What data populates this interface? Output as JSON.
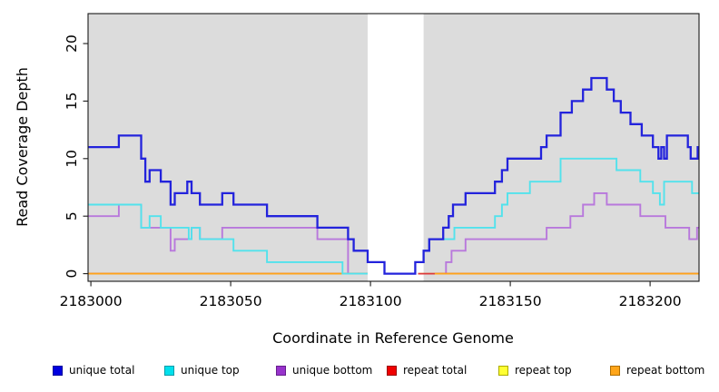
{
  "chart_data": {
    "type": "line",
    "subtype": "step",
    "title": "",
    "xlabel": "Coordinate in Reference Genome",
    "ylabel": "Read Coverage Depth",
    "xlim": [
      2182999,
      2183217.5
    ],
    "ylim": [
      -0.66,
      22.6
    ],
    "grid": false,
    "plot_bg_color": "#DCDCDC",
    "gap_band": {
      "x0": 2183099,
      "x1": 2183119,
      "color": "#FFFFFF"
    },
    "x_ticks": [
      {
        "value": 2183000,
        "label": "2183000"
      },
      {
        "value": 2183050,
        "label": "2183050"
      },
      {
        "value": 2183100,
        "label": "2183100"
      },
      {
        "value": 2183150,
        "label": "2183150"
      },
      {
        "value": 2183200,
        "label": "2183200"
      }
    ],
    "y_ticks": [
      {
        "value": 0,
        "label": "0"
      },
      {
        "value": 5,
        "label": "5"
      },
      {
        "value": 10,
        "label": "10"
      },
      {
        "value": 15,
        "label": "15"
      },
      {
        "value": 20,
        "label": "20"
      }
    ],
    "draw_order": [
      "unique bottom",
      "repeat top",
      "repeat total",
      "repeat bottom",
      "unique top",
      "unique total"
    ],
    "series": [
      {
        "name": "unique total",
        "color": "#2323DC",
        "line_width": 2.3,
        "segments": [
          [
            [
              2182999,
              11
            ],
            [
              2183010,
              12
            ],
            [
              2183018,
              10
            ],
            [
              2183019.5,
              8
            ],
            [
              2183021,
              9
            ],
            [
              2183025,
              8
            ],
            [
              2183028.5,
              6
            ],
            [
              2183030,
              7
            ],
            [
              2183034.5,
              8
            ],
            [
              2183036,
              7
            ],
            [
              2183039,
              6
            ],
            [
              2183047,
              7
            ],
            [
              2183051,
              6
            ],
            [
              2183063,
              5
            ],
            [
              2183081,
              4
            ],
            [
              2183092,
              3
            ],
            [
              2183094,
              2
            ],
            [
              2183099,
              1
            ],
            [
              2183105,
              0
            ],
            [
              2183116,
              1
            ],
            [
              2183119,
              2
            ],
            [
              2183121,
              3
            ],
            [
              2183126,
              4
            ],
            [
              2183128,
              5
            ],
            [
              2183129.5,
              6
            ],
            [
              2183134,
              7
            ],
            [
              2183144.5,
              8
            ],
            [
              2183147,
              9
            ],
            [
              2183149,
              10
            ],
            [
              2183161,
              11
            ],
            [
              2183163,
              12
            ],
            [
              2183168,
              14
            ],
            [
              2183172,
              15
            ],
            [
              2183176,
              16
            ],
            [
              2183179,
              17
            ],
            [
              2183184.5,
              16
            ],
            [
              2183187,
              15
            ],
            [
              2183189.5,
              14
            ],
            [
              2183193,
              13
            ],
            [
              2183197,
              12
            ],
            [
              2183201,
              11
            ],
            [
              2183203,
              10
            ],
            [
              2183204,
              11
            ],
            [
              2183205,
              10
            ],
            [
              2183206,
              12
            ],
            [
              2183213.5,
              11
            ],
            [
              2183214.5,
              10
            ],
            [
              2183217,
              11
            ],
            [
              2183217.5,
              11
            ]
          ]
        ]
      },
      {
        "name": "unique top",
        "color": "#52E2EC",
        "line_width": 1.9,
        "segments": [
          [
            [
              2182999,
              6
            ],
            [
              2183018,
              4
            ],
            [
              2183021,
              5
            ],
            [
              2183025,
              4
            ],
            [
              2183035,
              3
            ],
            [
              2183036,
              4
            ],
            [
              2183039,
              3
            ],
            [
              2183051,
              2
            ],
            [
              2183063,
              1
            ],
            [
              2183090,
              0
            ],
            [
              2183099,
              0
            ]
          ],
          [
            [
              2183116.5,
              1
            ],
            [
              2183119,
              2
            ],
            [
              2183121,
              3
            ],
            [
              2183130,
              4
            ],
            [
              2183144.5,
              5
            ],
            [
              2183147,
              6
            ],
            [
              2183149,
              7
            ],
            [
              2183157,
              8
            ],
            [
              2183168,
              10
            ],
            [
              2183188,
              9
            ],
            [
              2183196.5,
              8
            ],
            [
              2183201,
              7
            ],
            [
              2183203.5,
              6
            ],
            [
              2183205,
              8
            ],
            [
              2183215,
              7
            ],
            [
              2183217.5,
              7
            ]
          ]
        ]
      },
      {
        "name": "unique bottom",
        "color": "#B878DC",
        "line_width": 1.9,
        "segments": [
          [
            [
              2182999,
              5
            ],
            [
              2183010,
              6
            ],
            [
              2183018,
              4
            ],
            [
              2183028.5,
              2
            ],
            [
              2183030,
              3
            ],
            [
              2183036,
              4
            ],
            [
              2183039,
              3
            ],
            [
              2183047,
              4
            ],
            [
              2183081,
              3
            ],
            [
              2183092,
              0
            ],
            [
              2183099,
              0
            ]
          ],
          [
            [
              2183119,
              0
            ],
            [
              2183127,
              1
            ],
            [
              2183129,
              2
            ],
            [
              2183134,
              3
            ],
            [
              2183163,
              4
            ],
            [
              2183171.5,
              5
            ],
            [
              2183176,
              6
            ],
            [
              2183180,
              7
            ],
            [
              2183184.5,
              6
            ],
            [
              2183196.5,
              5
            ],
            [
              2183205.5,
              4
            ],
            [
              2183214,
              3
            ],
            [
              2183216.8,
              4
            ],
            [
              2183217.5,
              4
            ]
          ]
        ]
      },
      {
        "name": "repeat total",
        "color": "#DD3A3A",
        "line_width": 1.8,
        "segments": [
          [
            [
              2182999,
              0
            ],
            [
              2183099,
              0
            ]
          ],
          [
            [
              2183117,
              0
            ],
            [
              2183217.5,
              0
            ]
          ]
        ]
      },
      {
        "name": "repeat top",
        "color": "#F5E93B",
        "line_width": 1.8,
        "segments": [
          [
            [
              2182999,
              0
            ],
            [
              2183099,
              0
            ]
          ],
          [
            [
              2183117,
              0
            ],
            [
              2183217.5,
              0
            ]
          ]
        ]
      },
      {
        "name": "repeat bottom",
        "color": "#FFA319",
        "line_width": 1.8,
        "segments": [
          [
            [
              2182999,
              0
            ],
            [
              2183099,
              0
            ]
          ],
          [
            [
              2183123,
              0
            ],
            [
              2183217.5,
              0
            ]
          ]
        ]
      }
    ]
  },
  "legend": {
    "items": [
      {
        "label": "unique total",
        "fill": "#0000E0",
        "border": "#00009A"
      },
      {
        "label": "unique top",
        "fill": "#00E0EC",
        "border": "#009AA8"
      },
      {
        "label": "unique bottom",
        "fill": "#9833CC",
        "border": "#661F8C"
      },
      {
        "label": "repeat total",
        "fill": "#F00000",
        "border": "#9A0000"
      },
      {
        "label": "repeat top",
        "fill": "#FFFF33",
        "border": "#ACAC00"
      },
      {
        "label": "repeat bottom",
        "fill": "#FFA519",
        "border": "#B06E00"
      }
    ]
  }
}
